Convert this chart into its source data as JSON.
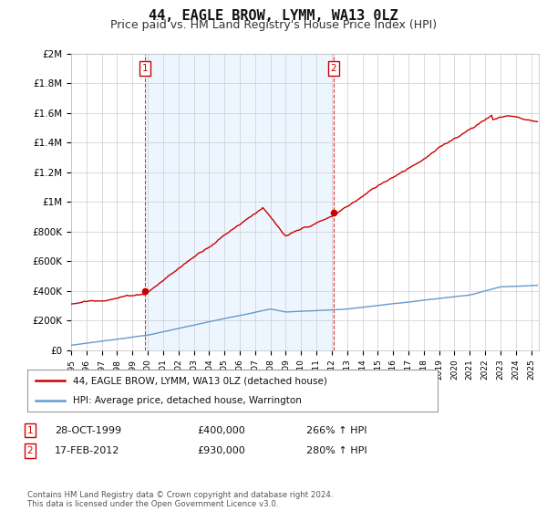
{
  "title": "44, EAGLE BROW, LYMM, WA13 0LZ",
  "subtitle": "Price paid vs. HM Land Registry's House Price Index (HPI)",
  "title_fontsize": 11,
  "subtitle_fontsize": 9,
  "background_color": "#ffffff",
  "grid_color": "#cccccc",
  "property_color": "#cc0000",
  "hpi_color": "#6699cc",
  "shade_color": "#ddeeff",
  "ylim": [
    0,
    2000000
  ],
  "yticks": [
    0,
    200000,
    400000,
    600000,
    800000,
    1000000,
    1200000,
    1400000,
    1600000,
    1800000,
    2000000
  ],
  "ytick_labels": [
    "£0",
    "£200K",
    "£400K",
    "£600K",
    "£800K",
    "£1M",
    "£1.2M",
    "£1.4M",
    "£1.6M",
    "£1.8M",
    "£2M"
  ],
  "purchase1": {
    "date_num": 1999.83,
    "price": 400000,
    "label": "1",
    "date_str": "28-OCT-1999",
    "price_str": "£400,000",
    "hpi_str": "266% ↑ HPI"
  },
  "purchase2": {
    "date_num": 2012.12,
    "price": 930000,
    "label": "2",
    "date_str": "17-FEB-2012",
    "price_str": "£930,000",
    "hpi_str": "280% ↑ HPI"
  },
  "legend_entry1": "44, EAGLE BROW, LYMM, WA13 0LZ (detached house)",
  "legend_entry2": "HPI: Average price, detached house, Warrington",
  "table_row1": [
    "1",
    "28-OCT-1999",
    "£400,000",
    "266% ↑ HPI"
  ],
  "table_row2": [
    "2",
    "17-FEB-2012",
    "£930,000",
    "280% ↑ HPI"
  ],
  "footnote": "Contains HM Land Registry data © Crown copyright and database right 2024.\nThis data is licensed under the Open Government Licence v3.0.",
  "xmin": 1995,
  "xmax": 2025.5,
  "xticks": [
    1995,
    1996,
    1997,
    1998,
    1999,
    2000,
    2001,
    2002,
    2003,
    2004,
    2005,
    2006,
    2007,
    2008,
    2009,
    2010,
    2011,
    2012,
    2013,
    2014,
    2015,
    2016,
    2017,
    2018,
    2019,
    2020,
    2021,
    2022,
    2023,
    2024,
    2025
  ]
}
